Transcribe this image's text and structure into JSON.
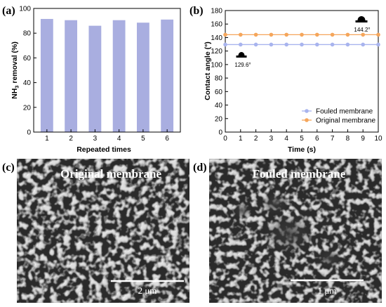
{
  "panel_labels": {
    "a": "(a)",
    "b": "(b)",
    "c": "(c)",
    "d": "(d)"
  },
  "chart_data": [
    {
      "type": "bar",
      "categories": [
        "1",
        "2",
        "3",
        "4",
        "5",
        "6"
      ],
      "values": [
        91.5,
        90.5,
        86.0,
        90.5,
        88.5,
        91.0
      ],
      "xlabel": "Repeated times",
      "ylabel_parts": [
        "NH",
        "3",
        " removal (%)"
      ],
      "ylim": [
        0,
        100
      ],
      "yticks": [
        0,
        20,
        40,
        60,
        80,
        100
      ],
      "bar_color": "#a9aee0",
      "grid": false
    },
    {
      "type": "line",
      "x": [
        0,
        1,
        2,
        3,
        4,
        5,
        6,
        7,
        8,
        9,
        10
      ],
      "xlim": [
        0,
        10
      ],
      "ylim": [
        0,
        180
      ],
      "yticks": [
        0,
        20,
        40,
        60,
        80,
        100,
        120,
        140,
        160,
        180
      ],
      "xlabel": "Time (s)",
      "ylabel": "Contact angle (°)",
      "legend_position": "bottom-right",
      "grid": false,
      "series": [
        {
          "name": "Fouled membrane",
          "values": [
            129.6,
            129.6,
            129.6,
            129.6,
            129.6,
            129.6,
            129.6,
            129.6,
            129.6,
            129.6,
            129.6
          ],
          "color": "#a8b4ee",
          "annotation": "129.6°"
        },
        {
          "name": "Original membrane",
          "values": [
            144.2,
            144.2,
            144.2,
            144.2,
            144.2,
            144.2,
            144.2,
            144.2,
            144.2,
            144.2,
            144.2
          ],
          "color": "#f5a65b",
          "annotation": "144.2°"
        }
      ]
    }
  ],
  "sem_images": [
    {
      "title": "Original membrane",
      "scale_bar": "2 μm"
    },
    {
      "title": "Fouled membrane",
      "scale_bar": "1 μm"
    }
  ]
}
